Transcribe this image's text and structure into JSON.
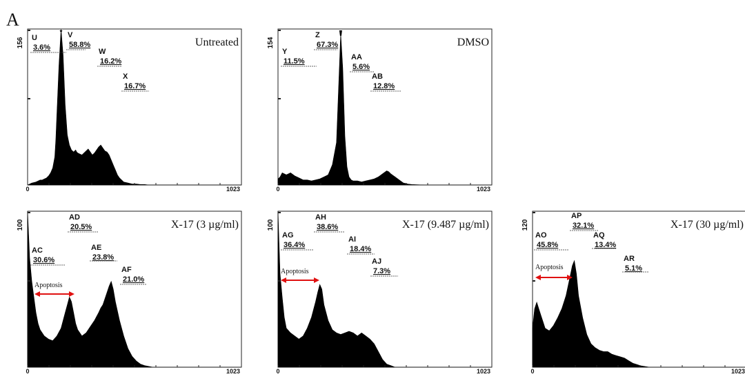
{
  "figure_label": "A",
  "chart_data": [
    {
      "type": "area",
      "title": "Untreated",
      "ymax_label": "156",
      "xlim": [
        0,
        1023
      ],
      "ylim": [
        0,
        156
      ],
      "x_tick_labels": [
        "0",
        "1023"
      ],
      "x": [
        0,
        20,
        40,
        60,
        70,
        80,
        90,
        100,
        110,
        120,
        130,
        135,
        140,
        150,
        160,
        170,
        180,
        190,
        200,
        210,
        215,
        220,
        225,
        230,
        235,
        240,
        250,
        260,
        270,
        280,
        290,
        300,
        310,
        320,
        330,
        340,
        350,
        360,
        370,
        380,
        390,
        400,
        410,
        420,
        430,
        440,
        450,
        460,
        480,
        500,
        520,
        540,
        560,
        580,
        600,
        640,
        700,
        800,
        900,
        1023
      ],
      "values": [
        0,
        2,
        3,
        5,
        5,
        6,
        7,
        9,
        12,
        17,
        28,
        45,
        70,
        120,
        156,
        130,
        80,
        50,
        40,
        35,
        34,
        33,
        34,
        35,
        33,
        32,
        31,
        30,
        32,
        34,
        36,
        33,
        30,
        32,
        35,
        38,
        40,
        37,
        34,
        33,
        30,
        25,
        20,
        15,
        10,
        7,
        5,
        3,
        2,
        1,
        1,
        0.5,
        0.5,
        0,
        0,
        0,
        0,
        0,
        0,
        0
      ],
      "peak_marker": true,
      "gates": [
        {
          "label": "U",
          "percent": "3.6%"
        },
        {
          "label": "V",
          "percent": "58.8%"
        },
        {
          "label": "W",
          "percent": "16.2%"
        },
        {
          "label": "X",
          "percent": "16.7%"
        }
      ]
    },
    {
      "type": "area",
      "title": "DMSO",
      "ymax_label": "154",
      "xlim": [
        0,
        1023
      ],
      "ylim": [
        0,
        154
      ],
      "x_tick_labels": [
        "0",
        "1023"
      ],
      "x": [
        0,
        10,
        20,
        40,
        60,
        80,
        100,
        120,
        140,
        160,
        180,
        200,
        220,
        240,
        260,
        280,
        300,
        310,
        320,
        330,
        340,
        350,
        360,
        370,
        380,
        400,
        420,
        440,
        460,
        480,
        500,
        520,
        530,
        540,
        560,
        580,
        600,
        620,
        640,
        700,
        800,
        900,
        1023
      ],
      "values": [
        6,
        8,
        12,
        10,
        12,
        9,
        7,
        5,
        5,
        4,
        5,
        6,
        8,
        10,
        20,
        42,
        150,
        115,
        48,
        18,
        8,
        5,
        4,
        4,
        4,
        3,
        4,
        5,
        6,
        8,
        11,
        14,
        13,
        11,
        8,
        5,
        2,
        1,
        0.5,
        0,
        0,
        0,
        0
      ],
      "peak_marker": true,
      "gates": [
        {
          "label": "Y",
          "percent": "11.5%"
        },
        {
          "label": "Z",
          "percent": "67.3%"
        },
        {
          "label": "AA",
          "percent": "5.6%"
        },
        {
          "label": "AB",
          "percent": "12.8%"
        }
      ]
    },
    {
      "type": "area",
      "title": "X-17 (3 µg/ml)",
      "ymax_label": "100",
      "xlim": [
        0,
        1023
      ],
      "ylim": [
        0,
        100
      ],
      "x_tick_labels": [
        "0",
        "1023"
      ],
      "x": [
        0,
        10,
        20,
        30,
        40,
        50,
        60,
        80,
        100,
        120,
        140,
        160,
        180,
        190,
        200,
        210,
        220,
        230,
        240,
        250,
        260,
        280,
        300,
        320,
        340,
        350,
        360,
        380,
        390,
        400,
        410,
        420,
        440,
        460,
        480,
        500,
        520,
        540,
        560,
        600,
        700,
        800,
        1023
      ],
      "values": [
        100,
        70,
        55,
        45,
        35,
        28,
        24,
        20,
        18,
        17,
        20,
        25,
        35,
        40,
        45,
        42,
        35,
        28,
        24,
        22,
        20,
        22,
        26,
        30,
        35,
        38,
        40,
        48,
        52,
        55,
        50,
        42,
        30,
        20,
        12,
        7,
        4,
        2,
        1,
        0,
        0,
        0,
        0
      ],
      "annotation": "Apoptosis",
      "gates": [
        {
          "label": "AC",
          "percent": "30.6%"
        },
        {
          "label": "AD",
          "percent": "20.5%"
        },
        {
          "label": "AE",
          "percent": "23.8%"
        },
        {
          "label": "AF",
          "percent": "21.0%"
        }
      ]
    },
    {
      "type": "area",
      "title": "X-17 (9.487 µg/ml)",
      "ymax_label": "100",
      "xlim": [
        0,
        1023
      ],
      "ylim": [
        0,
        100
      ],
      "x_tick_labels": [
        "0",
        "1023"
      ],
      "x": [
        0,
        10,
        20,
        30,
        40,
        60,
        80,
        100,
        120,
        140,
        160,
        180,
        190,
        200,
        210,
        220,
        240,
        260,
        280,
        300,
        320,
        340,
        360,
        380,
        400,
        420,
        440,
        460,
        480,
        500,
        520,
        540,
        560,
        600,
        700,
        800,
        1023
      ],
      "values": [
        100,
        60,
        45,
        32,
        25,
        22,
        20,
        18,
        20,
        25,
        32,
        42,
        48,
        53,
        50,
        40,
        30,
        24,
        22,
        21,
        22,
        23,
        22,
        20,
        22,
        20,
        18,
        15,
        10,
        5,
        2,
        1,
        0,
        0,
        0,
        0,
        0
      ],
      "annotation": "Apoptosis",
      "gates": [
        {
          "label": "AG",
          "percent": "36.4%"
        },
        {
          "label": "AH",
          "percent": "38.6%"
        },
        {
          "label": "AI",
          "percent": "18.4%"
        },
        {
          "label": "AJ",
          "percent": "7.3%"
        }
      ]
    },
    {
      "type": "area",
      "title": "X-17 (30 µg/ml)",
      "ymax_label": "120",
      "xlim": [
        0,
        1023
      ],
      "ylim": [
        0,
        120
      ],
      "x_tick_labels": [
        "0",
        "1023"
      ],
      "x": [
        0,
        10,
        20,
        30,
        40,
        50,
        60,
        80,
        100,
        120,
        140,
        160,
        180,
        190,
        200,
        210,
        220,
        240,
        260,
        280,
        300,
        320,
        340,
        360,
        380,
        400,
        420,
        440,
        460,
        480,
        500,
        520,
        540,
        560,
        600,
        700,
        800,
        1023
      ],
      "values": [
        30,
        45,
        50,
        45,
        40,
        35,
        30,
        28,
        32,
        38,
        45,
        55,
        70,
        78,
        82,
        72,
        55,
        38,
        25,
        18,
        15,
        13,
        12,
        12,
        10,
        9,
        8,
        7,
        5,
        3,
        2,
        1,
        0.5,
        0,
        0,
        0,
        0,
        0
      ],
      "annotation": "Apoptosis",
      "gates": [
        {
          "label": "AO",
          "percent": "45.8%"
        },
        {
          "label": "AP",
          "percent": "32.1%"
        },
        {
          "label": "AQ",
          "percent": "13.4%"
        },
        {
          "label": "AR",
          "percent": "5.1%"
        }
      ]
    }
  ]
}
